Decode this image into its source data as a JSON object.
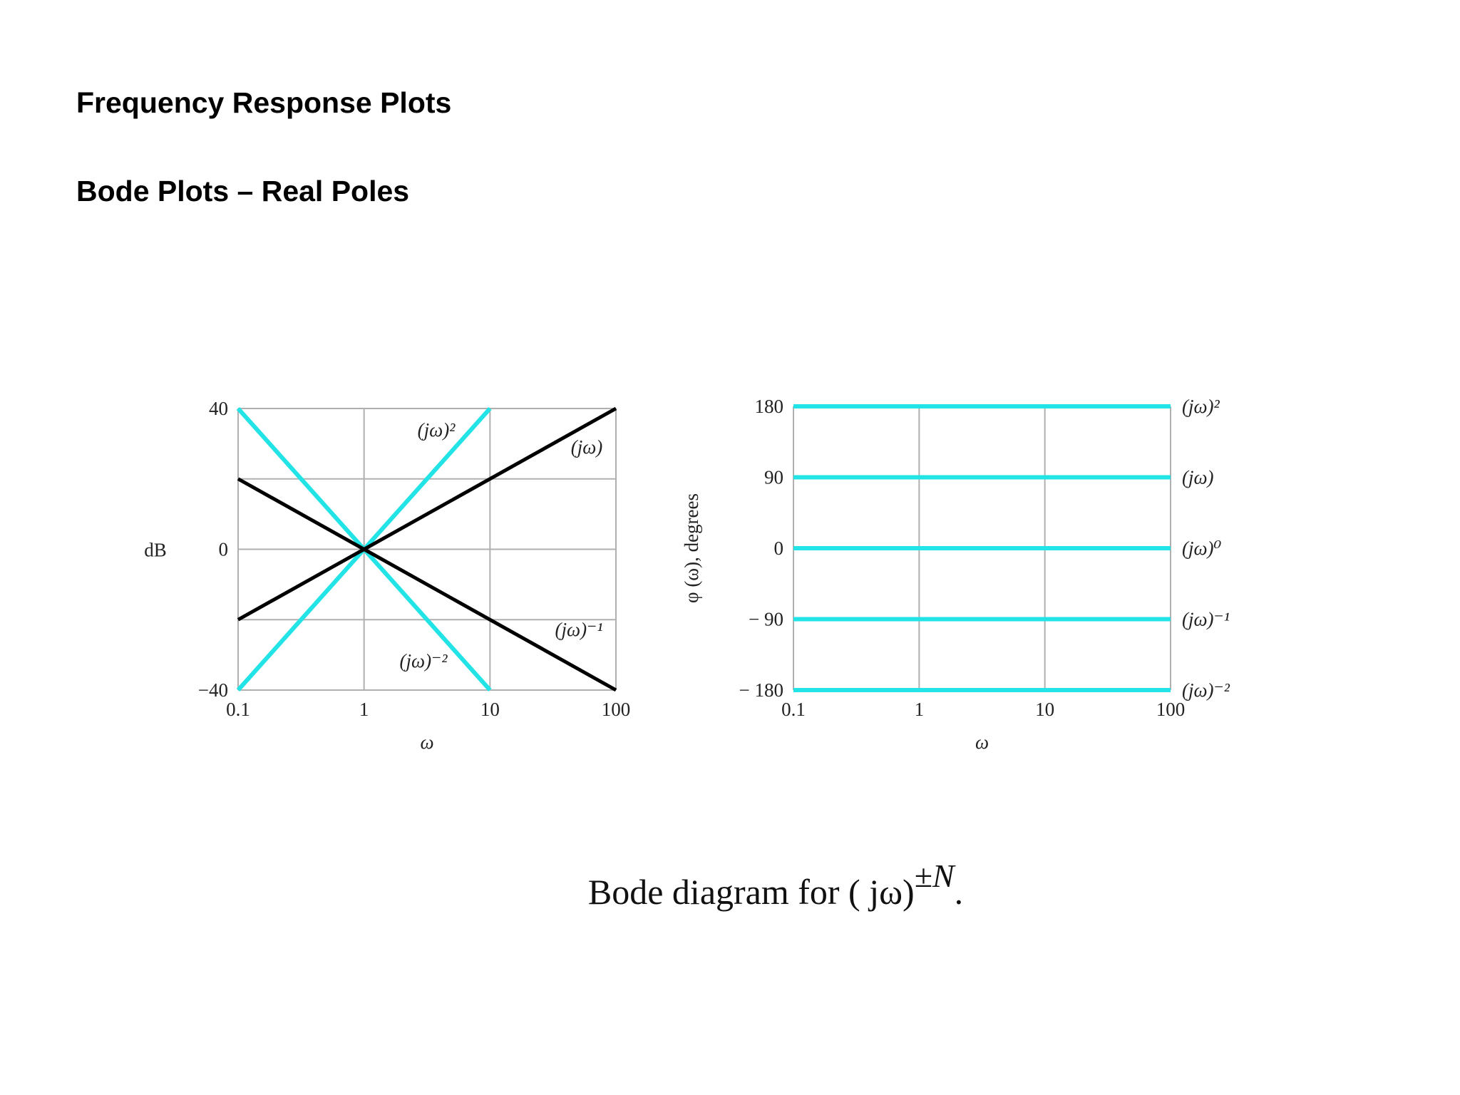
{
  "page": {
    "title": "Frequency Response Plots",
    "subtitle": "Bode Plots – Real Poles"
  },
  "caption": {
    "text": "Bode diagram for ( jω)",
    "superscript": "±N",
    "suffix": "."
  },
  "colors": {
    "cyan": "#22e3e6",
    "black": "#000000",
    "grid": "#b0b0b0"
  },
  "chart_data": [
    {
      "type": "line",
      "title": "",
      "xlabel": "ω",
      "ylabel": "dB",
      "x_scale": "log",
      "xlim": [
        0.1,
        100
      ],
      "ylim": [
        -40,
        40
      ],
      "x_ticks": [
        "0.1",
        "1",
        "10",
        "100"
      ],
      "x_tick_values": [
        0.1,
        1,
        10,
        100
      ],
      "y_ticks": [
        "40",
        "0",
        "−40"
      ],
      "y_tick_values": [
        40,
        0,
        -40
      ],
      "y_grid": [
        40,
        20,
        0,
        -20,
        -40
      ],
      "grid": true,
      "series": [
        {
          "name": "(jω)²",
          "color": "cyan",
          "x": [
            0.1,
            10
          ],
          "y": [
            -40,
            40
          ]
        },
        {
          "name": "(jω)⁻²",
          "color": "cyan",
          "x": [
            0.1,
            10
          ],
          "y": [
            40,
            -40
          ]
        },
        {
          "name": "(jω)",
          "color": "black",
          "x": [
            0.1,
            100
          ],
          "y": [
            -20,
            40
          ]
        },
        {
          "name": "(jω)⁻¹",
          "color": "black",
          "x": [
            0.1,
            100
          ],
          "y": [
            20,
            -40
          ]
        }
      ]
    },
    {
      "type": "line",
      "title": "",
      "xlabel": "ω",
      "ylabel": "φ (ω), degrees",
      "x_scale": "log",
      "xlim": [
        0.1,
        100
      ],
      "ylim": [
        -180,
        180
      ],
      "x_ticks": [
        "0.1",
        "1",
        "10",
        "100"
      ],
      "x_tick_values": [
        0.1,
        1,
        10,
        100
      ],
      "y_ticks": [
        "180",
        "90",
        "0",
        "− 90",
        "− 180"
      ],
      "y_tick_values": [
        180,
        90,
        0,
        -90,
        -180
      ],
      "grid": true,
      "series": [
        {
          "name": "(jω)²",
          "color": "cyan",
          "x": [
            0.1,
            100
          ],
          "y": [
            180,
            180
          ]
        },
        {
          "name": "(jω)",
          "color": "cyan",
          "x": [
            0.1,
            100
          ],
          "y": [
            90,
            90
          ]
        },
        {
          "name": "(jω)⁰",
          "color": "cyan",
          "x": [
            0.1,
            100
          ],
          "y": [
            0,
            0
          ]
        },
        {
          "name": "(jω)⁻¹",
          "color": "cyan",
          "x": [
            0.1,
            100
          ],
          "y": [
            -90,
            -90
          ]
        },
        {
          "name": "(jω)⁻²",
          "color": "cyan",
          "x": [
            0.1,
            100
          ],
          "y": [
            -180,
            -180
          ]
        }
      ]
    }
  ]
}
